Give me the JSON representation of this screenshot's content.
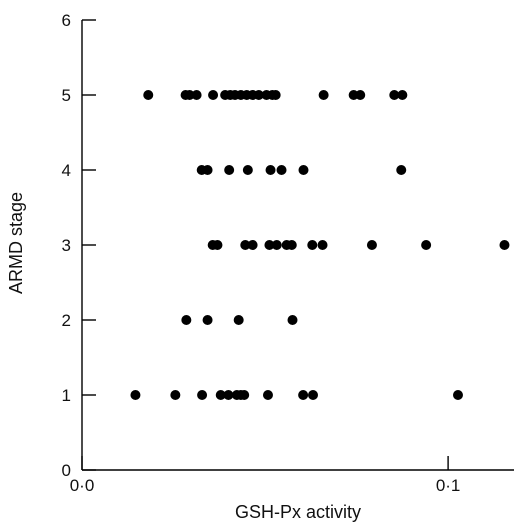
{
  "chart_data": {
    "type": "scatter",
    "xlabel": "GSH-Px activity",
    "ylabel": "ARMD stage",
    "xlim": [
      0.0,
      0.118
    ],
    "ylim": [
      0,
      6
    ],
    "x_ticks": [
      {
        "value": 0.0,
        "label": "0·0"
      },
      {
        "value": 0.1,
        "label": "0·1"
      }
    ],
    "y_ticks": [
      {
        "value": 0,
        "label": "0"
      },
      {
        "value": 1,
        "label": "1"
      },
      {
        "value": 2,
        "label": "2"
      },
      {
        "value": 3,
        "label": "3"
      },
      {
        "value": 4,
        "label": "4"
      },
      {
        "value": 5,
        "label": "5"
      },
      {
        "value": 6,
        "label": "6"
      }
    ],
    "grid": false,
    "legend": "none",
    "marker_color": "#000000",
    "series": [
      {
        "points": [
          {
            "x": 0.0181,
            "y": 5
          },
          {
            "x": 0.0283,
            "y": 5
          },
          {
            "x": 0.0294,
            "y": 5
          },
          {
            "x": 0.0313,
            "y": 5
          },
          {
            "x": 0.0358,
            "y": 5
          },
          {
            "x": 0.0391,
            "y": 5
          },
          {
            "x": 0.0405,
            "y": 5
          },
          {
            "x": 0.0418,
            "y": 5
          },
          {
            "x": 0.0434,
            "y": 5
          },
          {
            "x": 0.045,
            "y": 5
          },
          {
            "x": 0.0466,
            "y": 5
          },
          {
            "x": 0.0483,
            "y": 5
          },
          {
            "x": 0.0504,
            "y": 5
          },
          {
            "x": 0.052,
            "y": 5
          },
          {
            "x": 0.0529,
            "y": 5
          },
          {
            "x": 0.066,
            "y": 5
          },
          {
            "x": 0.0742,
            "y": 5
          },
          {
            "x": 0.076,
            "y": 5
          },
          {
            "x": 0.0853,
            "y": 5
          },
          {
            "x": 0.0875,
            "y": 5
          },
          {
            "x": 0.0327,
            "y": 4
          },
          {
            "x": 0.0343,
            "y": 4
          },
          {
            "x": 0.0402,
            "y": 4
          },
          {
            "x": 0.0453,
            "y": 4
          },
          {
            "x": 0.0515,
            "y": 4
          },
          {
            "x": 0.0545,
            "y": 4
          },
          {
            "x": 0.0605,
            "y": 4
          },
          {
            "x": 0.0872,
            "y": 4
          },
          {
            "x": 0.0357,
            "y": 3
          },
          {
            "x": 0.037,
            "y": 3
          },
          {
            "x": 0.0446,
            "y": 3
          },
          {
            "x": 0.0466,
            "y": 3
          },
          {
            "x": 0.0512,
            "y": 3
          },
          {
            "x": 0.0532,
            "y": 3
          },
          {
            "x": 0.0559,
            "y": 3
          },
          {
            "x": 0.0573,
            "y": 3
          },
          {
            "x": 0.0629,
            "y": 3
          },
          {
            "x": 0.0657,
            "y": 3
          },
          {
            "x": 0.0792,
            "y": 3
          },
          {
            "x": 0.094,
            "y": 3
          },
          {
            "x": 0.1154,
            "y": 3
          },
          {
            "x": 0.0285,
            "y": 2
          },
          {
            "x": 0.0343,
            "y": 2
          },
          {
            "x": 0.0428,
            "y": 2
          },
          {
            "x": 0.0575,
            "y": 2
          },
          {
            "x": 0.0146,
            "y": 1
          },
          {
            "x": 0.0255,
            "y": 1
          },
          {
            "x": 0.0328,
            "y": 1
          },
          {
            "x": 0.0379,
            "y": 1
          },
          {
            "x": 0.04,
            "y": 1
          },
          {
            "x": 0.0423,
            "y": 1
          },
          {
            "x": 0.0434,
            "y": 1
          },
          {
            "x": 0.0443,
            "y": 1
          },
          {
            "x": 0.0508,
            "y": 1
          },
          {
            "x": 0.0604,
            "y": 1
          },
          {
            "x": 0.0631,
            "y": 1
          },
          {
            "x": 0.1027,
            "y": 1
          }
        ]
      }
    ]
  }
}
